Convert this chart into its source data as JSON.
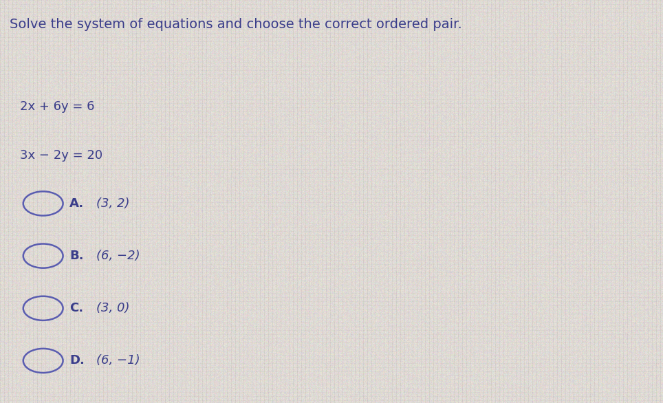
{
  "title": "Solve the system of equations and choose the correct ordered pair.",
  "title_fontsize": 14,
  "title_color": "#3a3d8a",
  "eq1": "2x + 6y = 6",
  "eq2": "3x − 2y = 20",
  "eq_fontsize": 13,
  "eq_color": "#3a3d8a",
  "options": [
    {
      "label": "A.",
      "value": "(3, 2)"
    },
    {
      "label": "B.",
      "value": "(6, −2)"
    },
    {
      "label": "C.",
      "value": "(3, 0)"
    },
    {
      "label": "D.",
      "value": "(6, −1)"
    }
  ],
  "option_fontsize": 13,
  "option_color": "#3a3d8a",
  "circle_color": "#5a5db0",
  "background_color_base": "#d4d4c8",
  "grid_color": "#bdbdb0",
  "fig_width": 9.64,
  "fig_height": 5.86,
  "dpi": 100
}
